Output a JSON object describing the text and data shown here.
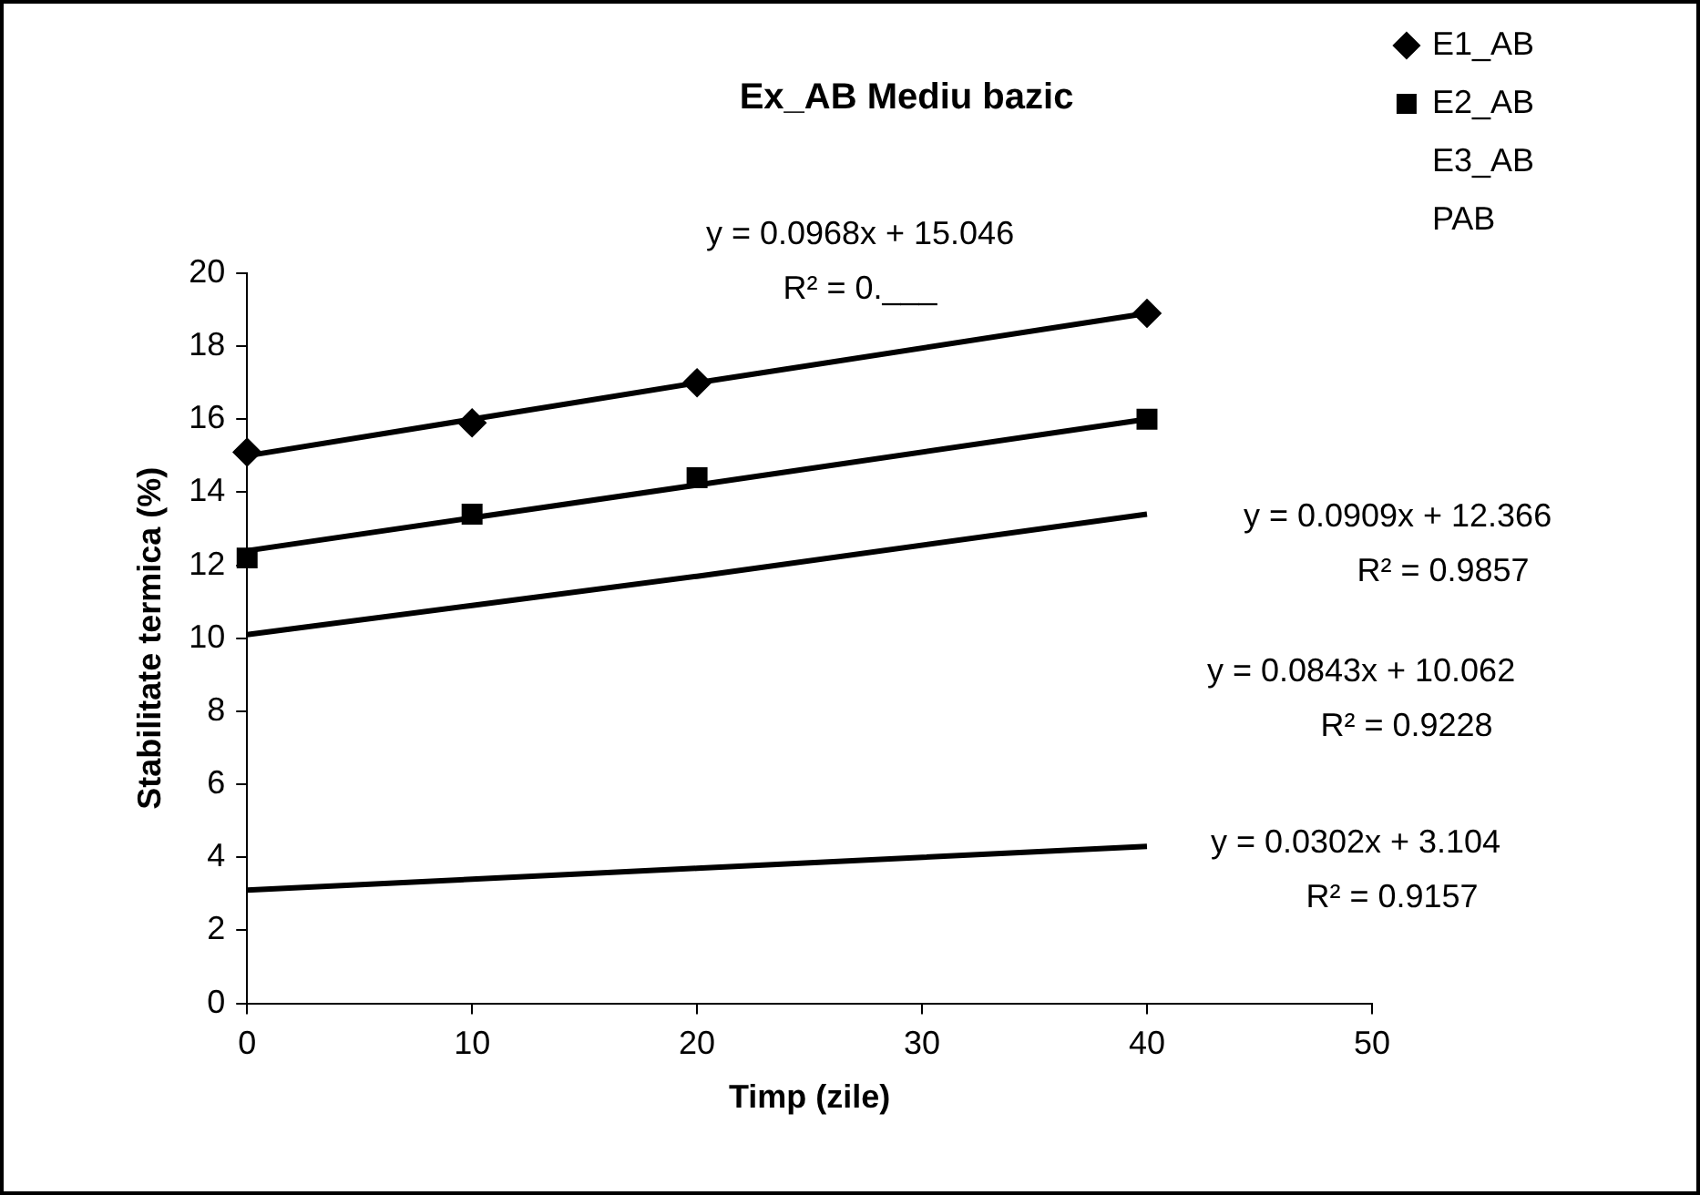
{
  "chart_data": {
    "type": "scatter",
    "title": "Ex_AB Mediu bazic",
    "xlabel": "Timp (zile)",
    "ylabel": "Stabilitate termica (%)",
    "x": [
      0,
      10,
      20,
      40
    ],
    "series": [
      {
        "name": "E1_AB",
        "color": "#000000",
        "marker": "diamond",
        "values": [
          15.1,
          15.9,
          17.0,
          18.9
        ]
      },
      {
        "name": "E2_AB",
        "color": "#000000",
        "marker": "square",
        "values": [
          12.2,
          13.4,
          14.4,
          16.0
        ]
      },
      {
        "name": "E3_AB",
        "color": "#000000",
        "marker": "none",
        "values": [
          null,
          null,
          null,
          null
        ]
      },
      {
        "name": "PAB",
        "color": "#000000",
        "marker": "none",
        "values": [
          null,
          null,
          null,
          null
        ]
      },
      {
        "type": "line",
        "color": "#000000",
        "marker": "none",
        "values": [
          15.0,
          16.0,
          17.0,
          18.9
        ]
      },
      {
        "type": "line",
        "color": "#000000",
        "marker": "none",
        "values": [
          12.4,
          13.3,
          14.2,
          16.0
        ]
      },
      {
        "type": "line",
        "color": "#000000",
        "marker": "none",
        "values": [
          10.1,
          10.9,
          11.7,
          13.4
        ]
      },
      {
        "type": "line",
        "color": "#000000",
        "marker": "none",
        "values": [
          3.1,
          3.4,
          3.7,
          4.3
        ]
      }
    ],
    "xlim": [
      0,
      50
    ],
    "xticks": [
      0,
      10,
      20,
      30,
      40,
      50
    ],
    "ylim": [
      0,
      20
    ],
    "yticks": [
      0,
      2,
      4,
      6,
      8,
      10,
      12,
      14,
      16,
      18,
      20
    ],
    "legend": "top right",
    "annotations": [
      "y = 0.0968x + 15.046",
      "R² = 0.___",
      "y = 0.0909x + 12.366",
      "R² = 0.9857",
      "y = 0.0843x + 10.062",
      "R² = 0.9228",
      "y = 0.0302x + 3.104",
      "R² = 0.9157"
    ]
  }
}
